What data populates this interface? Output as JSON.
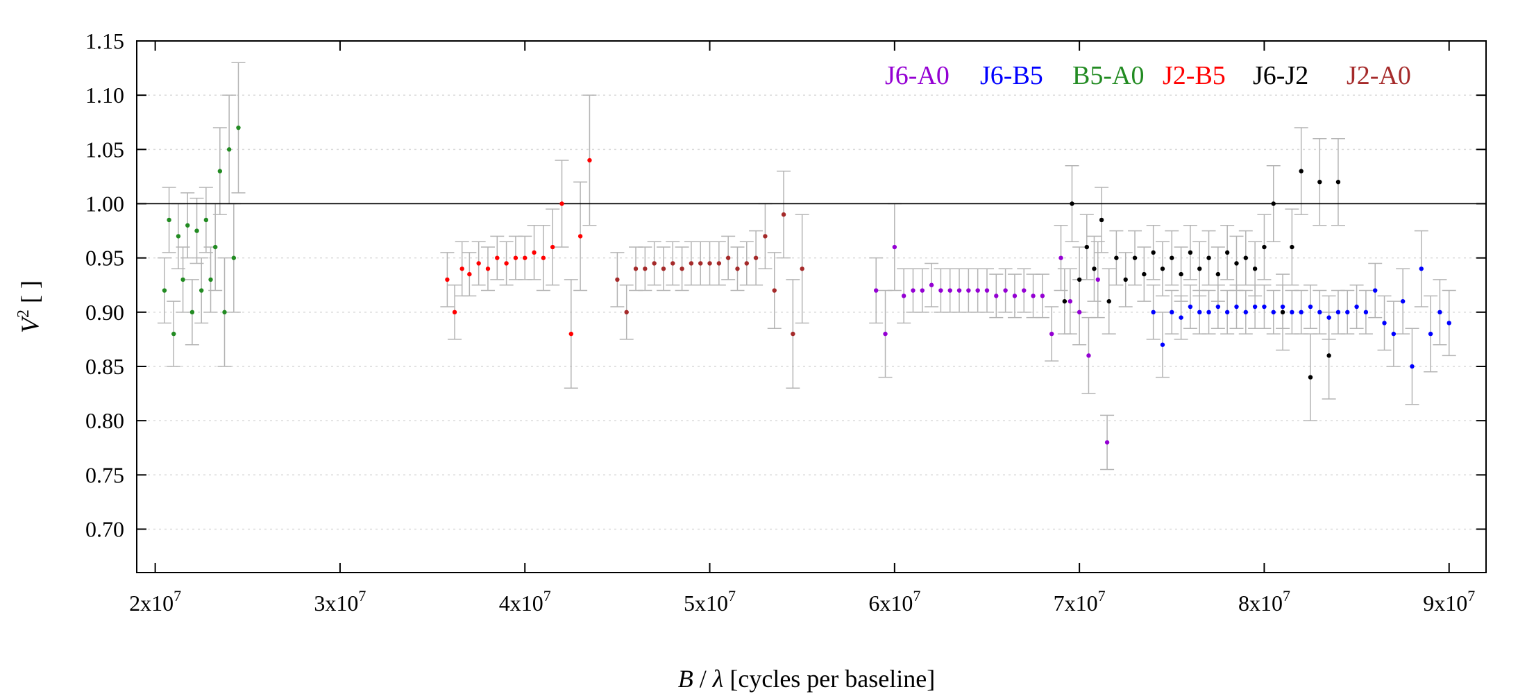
{
  "chart_data": {
    "type": "scatter",
    "title": "",
    "xlabel": {
      "symbol": "B",
      "sep": " / ",
      "lambda": "λ",
      "rest": " [cycles per baseline]"
    },
    "ylabel": {
      "symbol": "V",
      "sup": "2",
      "rest": " [ ]"
    },
    "xlim": [
      19000000,
      92000000
    ],
    "ylim": [
      0.66,
      1.15
    ],
    "xticks": [
      {
        "value": 20000000,
        "base": "2x10",
        "exp": "7"
      },
      {
        "value": 30000000,
        "base": "3x10",
        "exp": "7"
      },
      {
        "value": 40000000,
        "base": "4x10",
        "exp": "7"
      },
      {
        "value": 50000000,
        "base": "5x10",
        "exp": "7"
      },
      {
        "value": 60000000,
        "base": "6x10",
        "exp": "7"
      },
      {
        "value": 70000000,
        "base": "7x10",
        "exp": "7"
      },
      {
        "value": 80000000,
        "base": "8x10",
        "exp": "7"
      },
      {
        "value": 90000000,
        "base": "9x10",
        "exp": "7"
      }
    ],
    "yticks": [
      {
        "value": 0.7,
        "label": "0.70"
      },
      {
        "value": 0.75,
        "label": "0.75"
      },
      {
        "value": 0.8,
        "label": "0.80"
      },
      {
        "value": 0.85,
        "label": "0.85"
      },
      {
        "value": 0.9,
        "label": "0.90"
      },
      {
        "value": 0.95,
        "label": "0.95"
      },
      {
        "value": 1.0,
        "label": "1.00"
      },
      {
        "value": 1.05,
        "label": "1.05"
      },
      {
        "value": 1.1,
        "label": "1.10"
      },
      {
        "value": 1.15,
        "label": "1.15"
      }
    ],
    "reference_line": 1.0,
    "grid": "horizontal-dotted",
    "legend_position": "top-right",
    "error_bar_color": "#b4b4b4",
    "series": [
      {
        "name": "B5-A0",
        "color": "#228B22",
        "x": [
          20500000,
          20750000,
          21000000,
          21250000,
          21500000,
          21750000,
          22000000,
          22250000,
          22500000,
          22750000,
          23000000,
          23250000,
          23500000,
          23750000,
          24000000,
          24250000,
          24500000
        ],
        "y": [
          0.92,
          0.985,
          0.88,
          0.97,
          0.93,
          0.98,
          0.9,
          0.975,
          0.92,
          0.985,
          0.93,
          0.96,
          1.03,
          0.9,
          1.05,
          0.95,
          1.07
        ],
        "err": [
          0.03,
          0.03,
          0.03,
          0.03,
          0.03,
          0.03,
          0.03,
          0.03,
          0.03,
          0.03,
          0.03,
          0.04,
          0.04,
          0.05,
          0.05,
          0.05,
          0.06
        ]
      },
      {
        "name": "J2-B5",
        "color": "#ff0000",
        "x": [
          35800000,
          36200000,
          36600000,
          37000000,
          37500000,
          38000000,
          38500000,
          39000000,
          39500000,
          40000000,
          40500000,
          41000000,
          41500000,
          42000000,
          42500000,
          43000000,
          43500000
        ],
        "y": [
          0.93,
          0.9,
          0.94,
          0.935,
          0.945,
          0.94,
          0.95,
          0.945,
          0.95,
          0.95,
          0.955,
          0.95,
          0.96,
          1.0,
          0.88,
          0.97,
          1.04
        ],
        "err": [
          0.025,
          0.025,
          0.025,
          0.02,
          0.02,
          0.02,
          0.02,
          0.02,
          0.02,
          0.02,
          0.025,
          0.03,
          0.035,
          0.04,
          0.05,
          0.05,
          0.06
        ]
      },
      {
        "name": "J2-A0",
        "color": "#a52a2a",
        "x": [
          45000000,
          45500000,
          46000000,
          46500000,
          47000000,
          47500000,
          48000000,
          48500000,
          49000000,
          49500000,
          50000000,
          50500000,
          51000000,
          51500000,
          52000000,
          52500000,
          53000000,
          53500000,
          54000000,
          54500000,
          55000000
        ],
        "y": [
          0.93,
          0.9,
          0.94,
          0.94,
          0.945,
          0.94,
          0.945,
          0.94,
          0.945,
          0.945,
          0.945,
          0.945,
          0.95,
          0.94,
          0.945,
          0.95,
          0.97,
          0.92,
          0.99,
          0.88,
          0.94
        ],
        "err": [
          0.025,
          0.025,
          0.02,
          0.02,
          0.02,
          0.02,
          0.02,
          0.02,
          0.02,
          0.02,
          0.02,
          0.02,
          0.02,
          0.02,
          0.02,
          0.025,
          0.03,
          0.035,
          0.04,
          0.05,
          0.05
        ]
      },
      {
        "name": "J6-A0",
        "color": "#9400d3",
        "x": [
          59000000,
          59500000,
          60000000,
          60500000,
          61000000,
          61500000,
          62000000,
          62500000,
          63000000,
          63500000,
          64000000,
          64500000,
          65000000,
          65500000,
          66000000,
          66500000,
          67000000,
          67500000,
          68000000,
          68500000,
          69000000,
          69500000,
          70000000,
          70500000,
          71000000,
          71500000
        ],
        "y": [
          0.92,
          0.88,
          0.96,
          0.915,
          0.92,
          0.92,
          0.925,
          0.92,
          0.92,
          0.92,
          0.92,
          0.92,
          0.92,
          0.915,
          0.92,
          0.915,
          0.92,
          0.915,
          0.915,
          0.88,
          0.95,
          0.91,
          0.9,
          0.86,
          0.93,
          0.78
        ],
        "err": [
          0.03,
          0.04,
          0.04,
          0.025,
          0.02,
          0.02,
          0.02,
          0.02,
          0.02,
          0.02,
          0.02,
          0.02,
          0.02,
          0.02,
          0.02,
          0.02,
          0.02,
          0.02,
          0.02,
          0.025,
          0.03,
          0.03,
          0.03,
          0.035,
          0.035,
          0.025
        ]
      },
      {
        "name": "J6-B5",
        "color": "#0000ff",
        "x": [
          74000000,
          74500000,
          75000000,
          75500000,
          76000000,
          76500000,
          77000000,
          77500000,
          78000000,
          78500000,
          79000000,
          79500000,
          80000000,
          80500000,
          81000000,
          81500000,
          82000000,
          82500000,
          83000000,
          83500000,
          84000000,
          84500000,
          85000000,
          85500000,
          86000000,
          86500000,
          87000000,
          87500000,
          88000000,
          88500000,
          89000000,
          89500000,
          90000000
        ],
        "y": [
          0.9,
          0.87,
          0.9,
          0.895,
          0.905,
          0.9,
          0.9,
          0.905,
          0.9,
          0.905,
          0.9,
          0.905,
          0.905,
          0.9,
          0.905,
          0.9,
          0.9,
          0.905,
          0.9,
          0.895,
          0.9,
          0.9,
          0.905,
          0.9,
          0.92,
          0.89,
          0.88,
          0.91,
          0.85,
          0.94,
          0.88,
          0.9,
          0.89
        ],
        "err": [
          0.025,
          0.03,
          0.02,
          0.02,
          0.02,
          0.02,
          0.02,
          0.02,
          0.02,
          0.02,
          0.02,
          0.02,
          0.02,
          0.02,
          0.02,
          0.02,
          0.02,
          0.02,
          0.02,
          0.02,
          0.02,
          0.02,
          0.02,
          0.02,
          0.025,
          0.025,
          0.03,
          0.03,
          0.035,
          0.035,
          0.035,
          0.03,
          0.03
        ]
      },
      {
        "name": "J6-J2",
        "color": "#000000",
        "x": [
          69200000,
          69600000,
          70000000,
          70400000,
          70800000,
          71200000,
          71600000,
          72000000,
          72500000,
          73000000,
          73500000,
          74000000,
          74500000,
          75000000,
          75500000,
          76000000,
          76500000,
          77000000,
          77500000,
          78000000,
          78500000,
          79000000,
          79500000,
          80000000,
          80500000,
          81000000,
          81500000,
          82000000,
          82500000,
          83000000,
          83500000,
          84000000
        ],
        "y": [
          0.91,
          1.0,
          0.93,
          0.96,
          0.94,
          0.985,
          0.91,
          0.95,
          0.93,
          0.95,
          0.935,
          0.955,
          0.94,
          0.95,
          0.935,
          0.955,
          0.94,
          0.95,
          0.935,
          0.955,
          0.945,
          0.95,
          0.94,
          0.96,
          1.0,
          0.9,
          0.96,
          1.03,
          0.84,
          1.02,
          0.86,
          1.02
        ],
        "err": [
          0.03,
          0.035,
          0.03,
          0.03,
          0.03,
          0.03,
          0.03,
          0.025,
          0.025,
          0.025,
          0.025,
          0.025,
          0.025,
          0.025,
          0.025,
          0.025,
          0.025,
          0.025,
          0.025,
          0.025,
          0.025,
          0.025,
          0.025,
          0.03,
          0.035,
          0.035,
          0.035,
          0.04,
          0.04,
          0.04,
          0.04,
          0.04
        ]
      }
    ],
    "legend_order": [
      "J6-A0",
      "J6-B5",
      "B5-A0",
      "J2-B5",
      "J6-J2",
      "J2-A0"
    ]
  }
}
